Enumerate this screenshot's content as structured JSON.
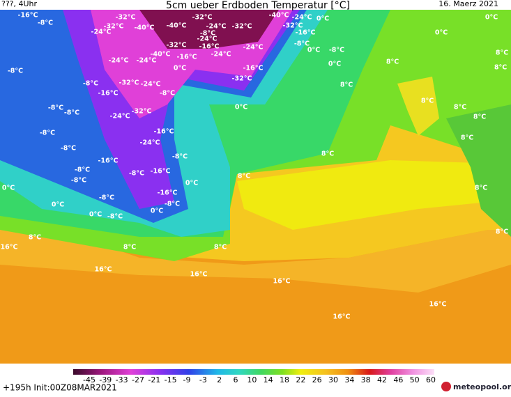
{
  "header": {
    "left": "???, 4Uhr",
    "title": "5cm ueber Erdboden Temperatur [°C]",
    "date": "16. Maerz 2021"
  },
  "map": {
    "labels": [
      "-16°C",
      "-8°C",
      "-32°C",
      "-24°C",
      "-32°C",
      "-40°C",
      "-32°C",
      "-40°C",
      "-24°C",
      "-32°C",
      "-40°C",
      "-24°C",
      "-32°C",
      "0°C",
      "0°C",
      "-16°C",
      "-8°C",
      "-24°C",
      "-32°C",
      "-16°C",
      "-24°C",
      "-24°C",
      "-8°C",
      "0°C",
      "-8°C",
      "0°C",
      "8°C",
      "8°C",
      "-8°C",
      "-24°C",
      "-24°C",
      "-40°C",
      "-16°C",
      "0°C",
      "-16°C",
      "0°C",
      "8°C",
      "-8°C",
      "-32°C",
      "-24°C",
      "-32°C",
      "8°C",
      "-16°C",
      "-8°C",
      "-8°C",
      "-8°C",
      "-32°C",
      "-24°C",
      "0°C",
      "8°C",
      "8°C",
      "8°C",
      "-8°C",
      "-16°C",
      "-24°C",
      "-8°C",
      "8°C",
      "8°C",
      "-8°C",
      "-16°C",
      "-8°C",
      "-8°C",
      "-16°C",
      "8°C",
      "-8°C",
      "0°C",
      "0°C",
      "8°C",
      "-16°C",
      "-8°C",
      "0°C",
      "-8°C",
      "0°C",
      "0°C",
      "-8°C",
      "8°C",
      "8°C",
      "16°C",
      "8°C",
      "8°C",
      "16°C",
      "16°C",
      "16°C",
      "16°C",
      "16°C"
    ]
  },
  "colorbar": {
    "ticks": [
      -45,
      -39,
      -33,
      -27,
      -21,
      -15,
      -9,
      -3,
      2,
      6,
      10,
      14,
      18,
      22,
      26,
      30,
      34,
      38,
      42,
      46,
      50,
      60
    ]
  },
  "footer": {
    "run": "+195h Init:00Z08MAR2021",
    "brand": "meteopool.org"
  }
}
